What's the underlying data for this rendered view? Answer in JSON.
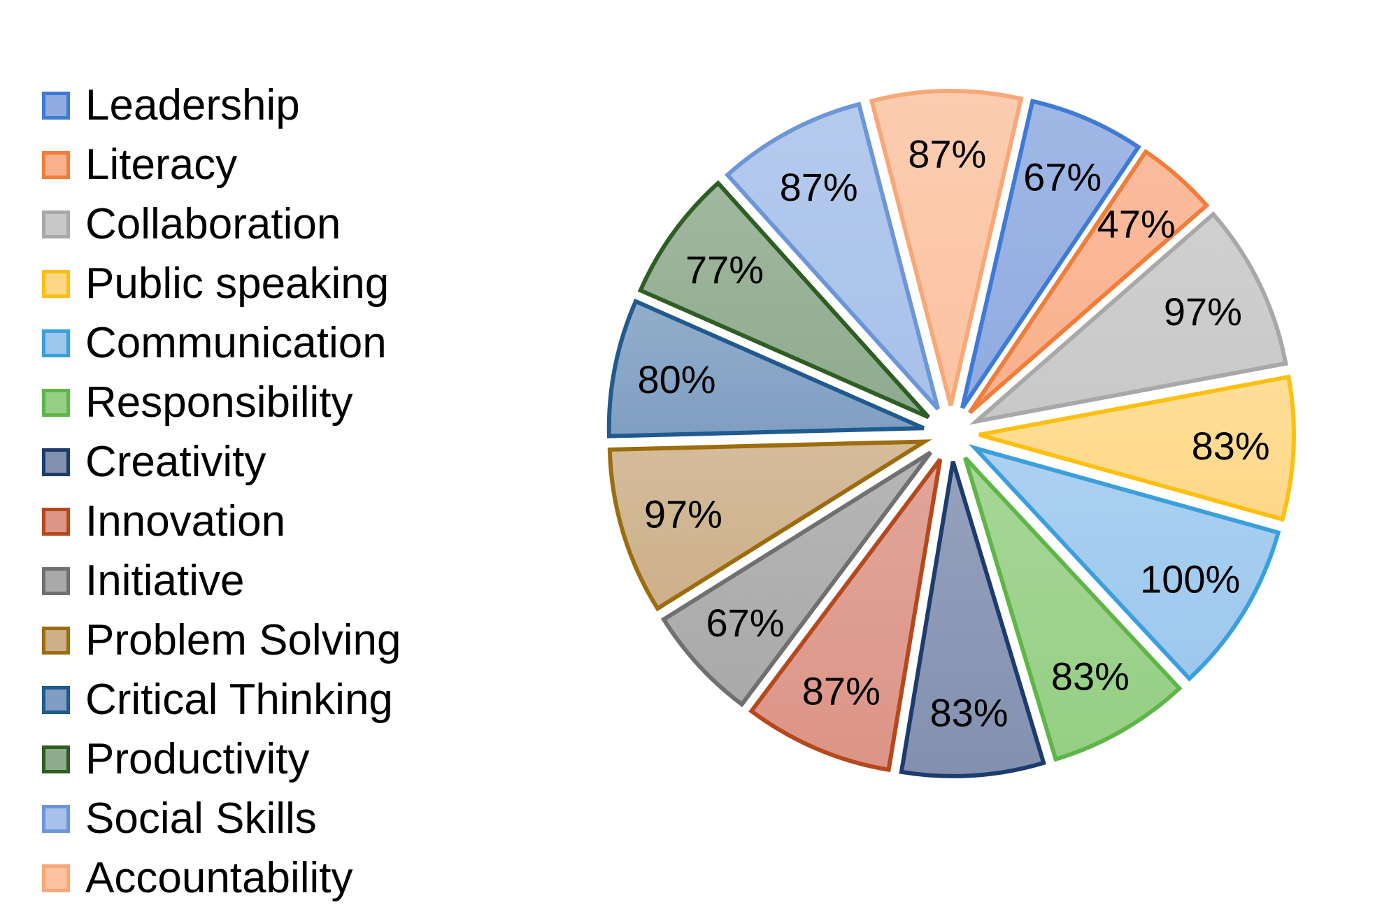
{
  "chart_data": {
    "type": "pie",
    "exploded": true,
    "legend_position": "left",
    "categories": [
      "Leadership",
      "Literacy",
      "Collaboration",
      "Public speaking",
      "Communication",
      "Responsibility",
      "Creativity",
      "Innovation",
      "Initiative",
      "Problem Solving",
      "Critical Thinking",
      "Productivity",
      "Social Skills",
      "Accountability"
    ],
    "values": [
      67,
      47,
      97,
      83,
      100,
      83,
      83,
      87,
      67,
      97,
      80,
      77,
      87,
      87
    ],
    "data_labels": [
      "67%",
      "47%",
      "97%",
      "83%",
      "100%",
      "83%",
      "83%",
      "87%",
      "67%",
      "97%",
      "80%",
      "77%",
      "87%",
      "87%"
    ],
    "fill_colors": [
      "#8fabe0",
      "#f9b08c",
      "#c8c8c8",
      "#fed887",
      "#9dc8ee",
      "#96cf84",
      "#8390b0",
      "#dc9587",
      "#a9a9a9",
      "#cdb08a",
      "#7f9fc2",
      "#8fab8e",
      "#a8c1ea",
      "#fcc3a2"
    ],
    "border_colors": [
      "#3f7ad5",
      "#f07d3a",
      "#a8a8a8",
      "#fcc012",
      "#3b9fdc",
      "#5fb548",
      "#1d3c6d",
      "#b5481d",
      "#707070",
      "#9c6c0e",
      "#205a8e",
      "#2f5e24",
      "#6c96d6",
      "#f8a877"
    ]
  }
}
